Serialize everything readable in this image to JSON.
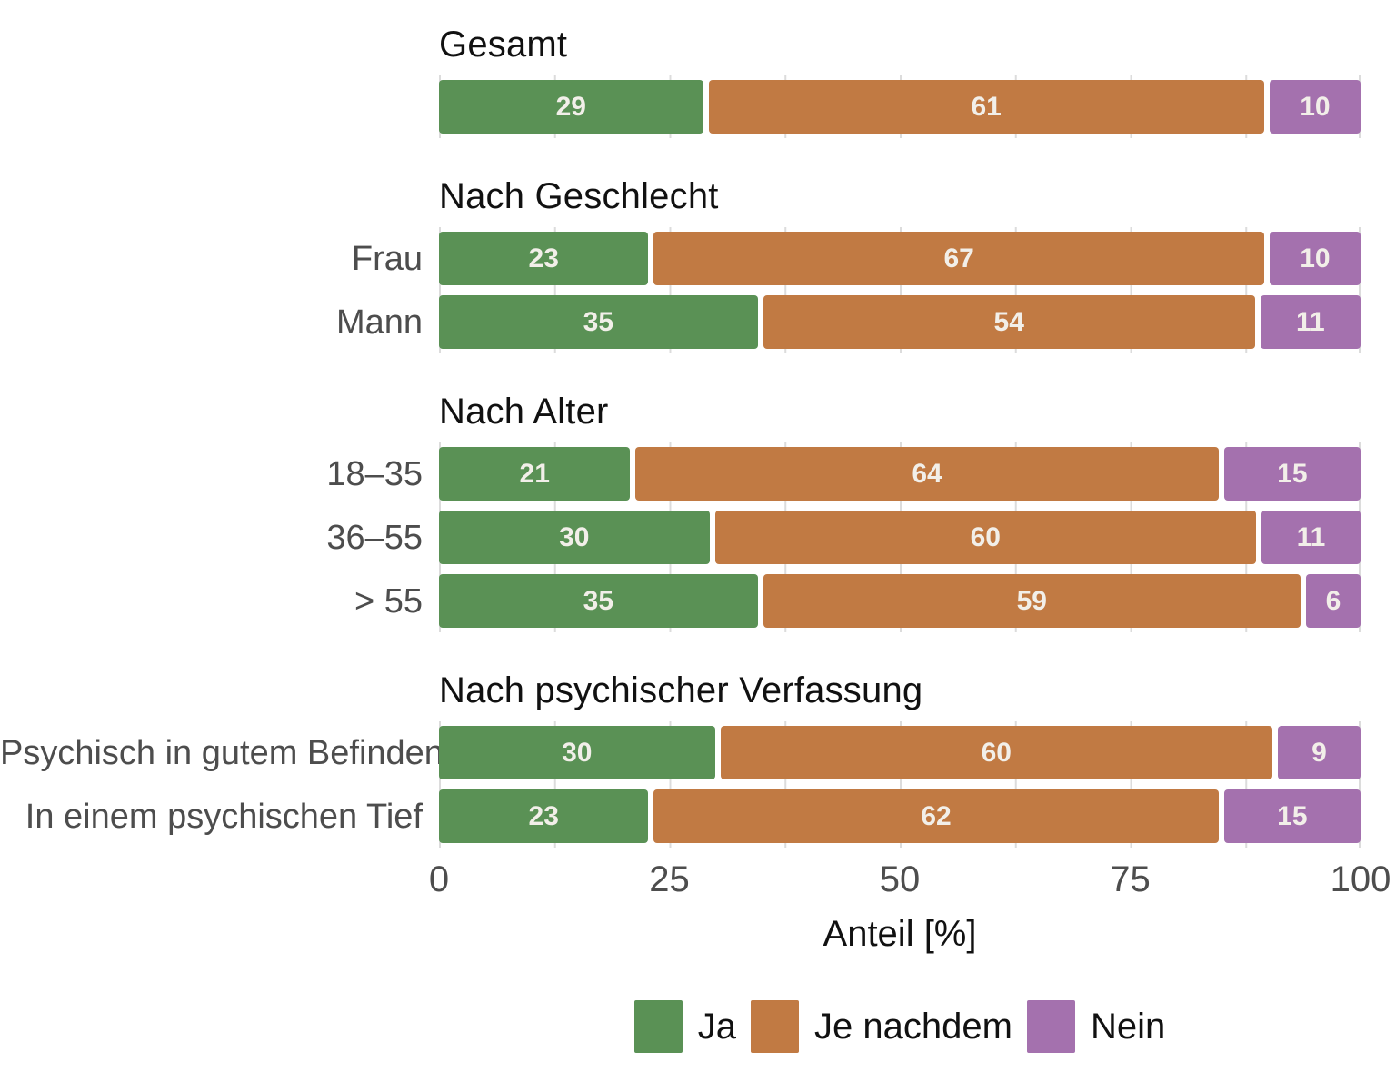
{
  "chart_data": {
    "type": "bar",
    "orientation": "horizontal",
    "stacked": true,
    "normalized_to_100": true,
    "xlabel": "Anteil [%]",
    "xlim": [
      0,
      100
    ],
    "x_ticks": [
      0,
      25,
      50,
      75,
      100
    ],
    "minor_grid_step_percent": 12.5,
    "grid": true,
    "grid_color": "#dcdcdc",
    "value_label_color": "#f2efe9",
    "row_label_color": "#4d4d4d",
    "axis_tick_color": "#4d4d4d",
    "title_color": "#111111",
    "legend_position": "bottom-center",
    "series": [
      {
        "name": "Ja",
        "color": "#5a9155"
      },
      {
        "name": "Je nachdem",
        "color": "#c17a43"
      },
      {
        "name": "Nein",
        "color": "#a471ae"
      }
    ],
    "groups": [
      {
        "title": "Gesamt",
        "rows": [
          {
            "label": "",
            "values": [
              29,
              61,
              10
            ]
          }
        ]
      },
      {
        "title": "Nach Geschlecht",
        "rows": [
          {
            "label": "Frau",
            "values": [
              23,
              67,
              10
            ]
          },
          {
            "label": "Mann",
            "values": [
              35,
              54,
              11
            ]
          }
        ]
      },
      {
        "title": "Nach Alter",
        "rows": [
          {
            "label": "18–35",
            "values": [
              21,
              64,
              15
            ]
          },
          {
            "label": "36–55",
            "values": [
              30,
              60,
              11
            ]
          },
          {
            "label": "> 55",
            "values": [
              35,
              59,
              6
            ]
          }
        ]
      },
      {
        "title": "Nach psychischer Verfassung",
        "rows": [
          {
            "label": "Psychisch in gutem Befinden",
            "values": [
              30,
              60,
              9
            ]
          },
          {
            "label": "In einem psychischen Tief",
            "values": [
              23,
              62,
              15
            ]
          }
        ]
      }
    ]
  }
}
